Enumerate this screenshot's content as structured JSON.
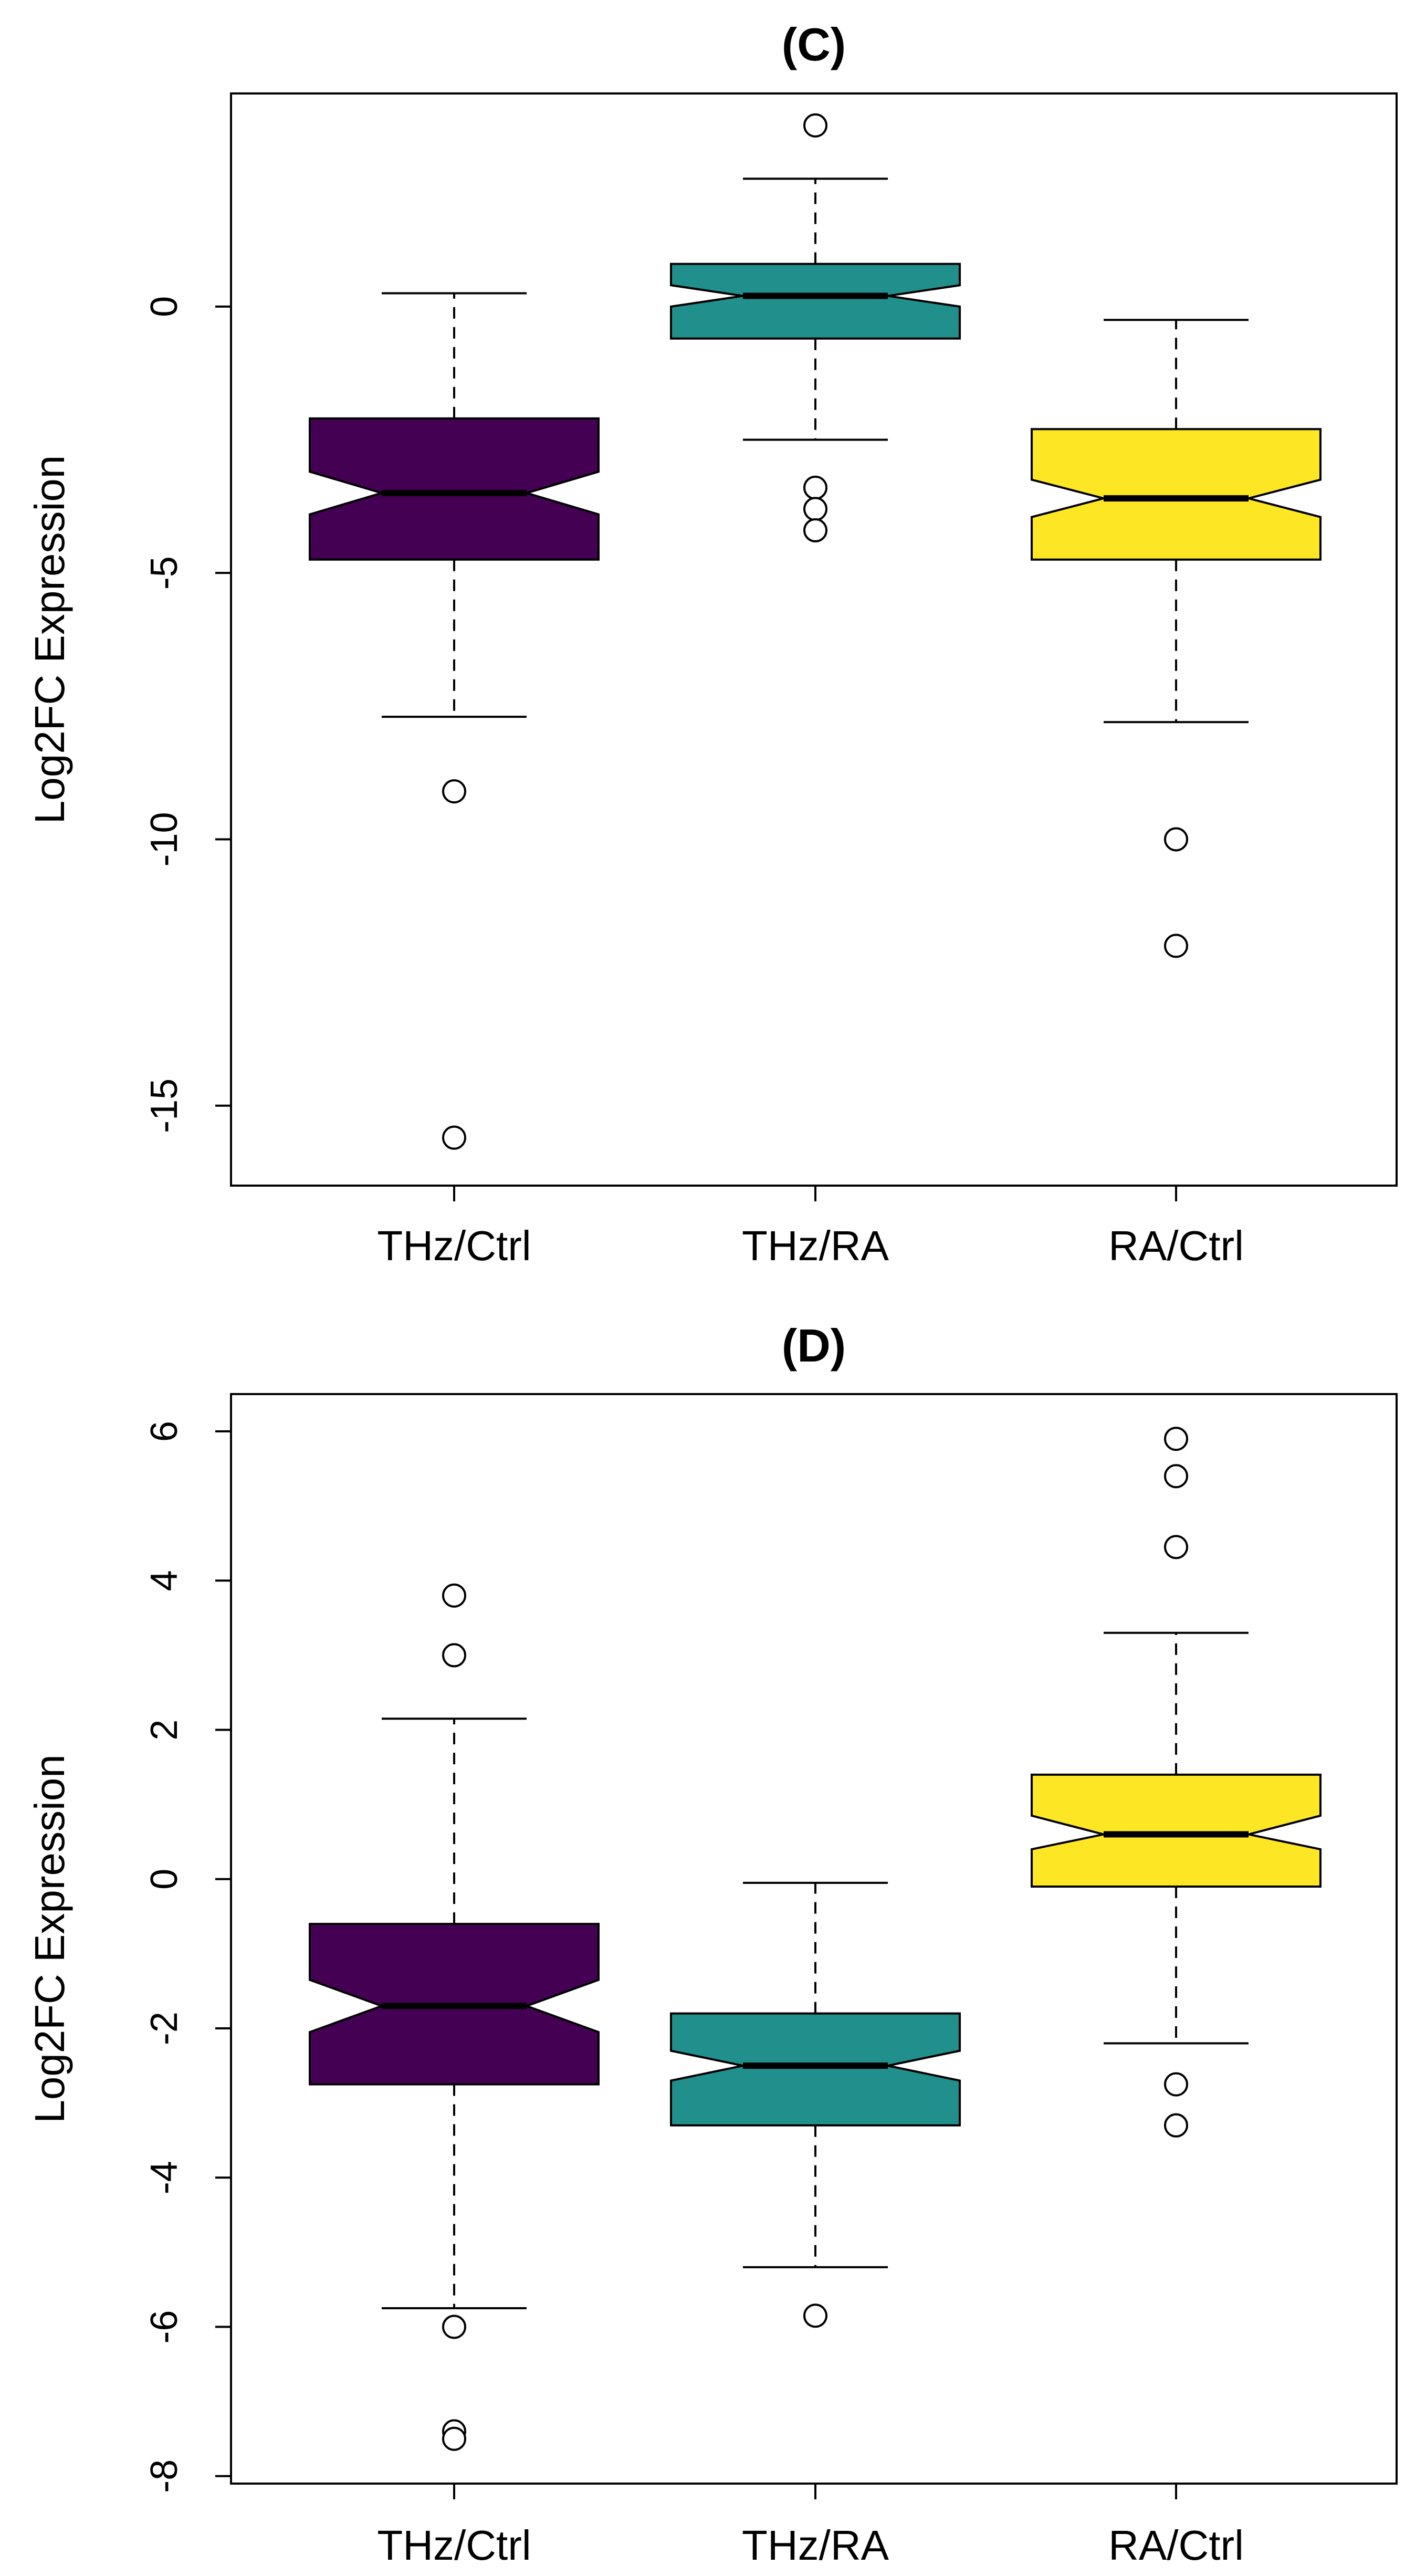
{
  "chart_data": [
    {
      "type": "boxplot",
      "notched": true,
      "title": "(C)",
      "xlabel": "",
      "ylabel": "Log2FC Expression",
      "ylim": [
        -16.5,
        4.0
      ],
      "yticks": [
        0,
        -5,
        -10,
        -15
      ],
      "ytick_labels": [
        "0",
        "-5",
        "-10",
        "-15"
      ],
      "categories": [
        "THz/Ctrl",
        "THz/RA",
        "RA/Ctrl"
      ],
      "boxes": [
        {
          "category": "THz/Ctrl",
          "color": "#440154",
          "whisker_low": -7.7,
          "q1": -4.75,
          "median": -3.5,
          "q3": -2.1,
          "whisker_high": 0.25,
          "notch_low": -3.9,
          "notch_high": -3.1,
          "outliers": [
            -9.1,
            -15.6
          ]
        },
        {
          "category": "THz/RA",
          "color": "#21908C",
          "whisker_low": -2.5,
          "q1": -0.6,
          "median": 0.2,
          "q3": 0.8,
          "whisker_high": 2.4,
          "notch_low": 0.0,
          "notch_high": 0.4,
          "outliers": [
            3.4,
            -3.4,
            -3.8,
            -4.2
          ]
        },
        {
          "category": "RA/Ctrl",
          "color": "#FDE725",
          "whisker_low": -7.8,
          "q1": -4.75,
          "median": -3.6,
          "q3": -2.3,
          "whisker_high": -0.25,
          "notch_low": -3.95,
          "notch_high": -3.25,
          "outliers": [
            -10.0,
            -12.0
          ]
        }
      ]
    },
    {
      "type": "boxplot",
      "notched": true,
      "title": "(D)",
      "xlabel": "",
      "ylabel": "Log2FC Expression",
      "ylim": [
        -8.1,
        6.5
      ],
      "yticks": [
        6,
        4,
        2,
        0,
        -2,
        -4,
        -6,
        -8
      ],
      "ytick_labels": [
        "6",
        "4",
        "2",
        "0",
        "-2",
        "-4",
        "-6",
        "-8"
      ],
      "categories": [
        "THz/Ctrl",
        "THz/RA",
        "RA/Ctrl"
      ],
      "boxes": [
        {
          "category": "THz/Ctrl",
          "color": "#440154",
          "whisker_low": -5.75,
          "q1": -2.75,
          "median": -1.7,
          "q3": -0.6,
          "whisker_high": 2.15,
          "notch_low": -2.05,
          "notch_high": -1.35,
          "outliers": [
            3.8,
            3.0,
            -6.0,
            -7.4,
            -7.5
          ]
        },
        {
          "category": "THz/RA",
          "color": "#21908C",
          "whisker_low": -5.2,
          "q1": -3.3,
          "median": -2.5,
          "q3": -1.8,
          "whisker_high": -0.05,
          "notch_low": -2.7,
          "notch_high": -2.3,
          "outliers": [
            -5.85
          ]
        },
        {
          "category": "RA/Ctrl",
          "color": "#FDE725",
          "whisker_low": -2.2,
          "q1": -0.1,
          "median": 0.6,
          "q3": 1.4,
          "whisker_high": 3.3,
          "notch_low": 0.4,
          "notch_high": 0.85,
          "outliers": [
            5.9,
            5.4,
            4.45,
            -2.75,
            -3.3
          ]
        }
      ]
    }
  ]
}
